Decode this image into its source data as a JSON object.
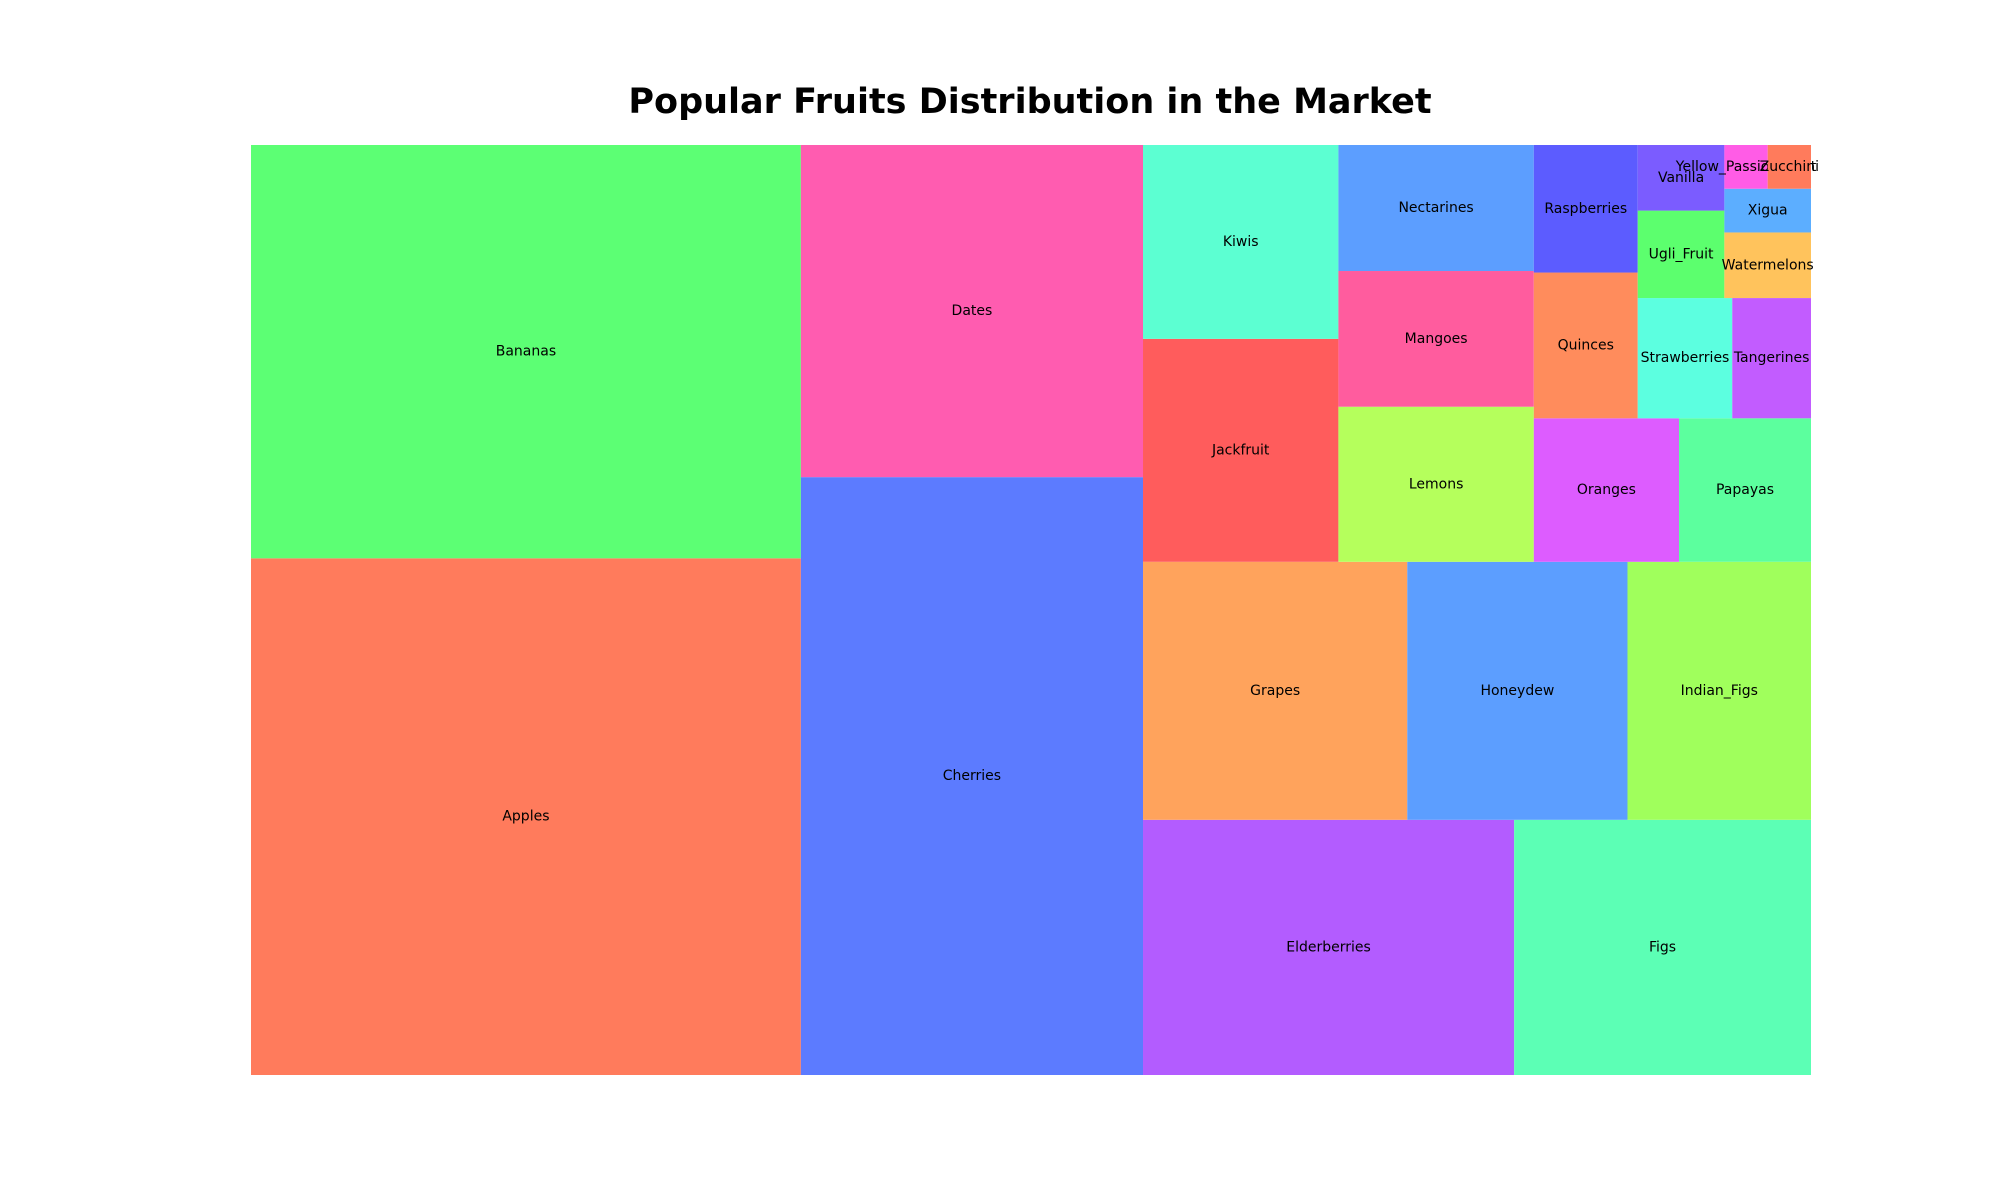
{
  "chart_data": {
    "type": "treemap",
    "title": "Popular Fruits Distribution in the Market",
    "items": [
      {
        "label": "Apples",
        "value": 150,
        "color": "#ff7b5c"
      },
      {
        "label": "Bananas",
        "value": 120,
        "color": "#5cff74"
      },
      {
        "label": "Cherries",
        "value": 108,
        "color": "#5c7bff"
      },
      {
        "label": "Dates",
        "value": 60,
        "color": "#ff5cb0"
      },
      {
        "label": "Elderberries",
        "value": 50,
        "color": "#b35cff"
      },
      {
        "label": "Figs",
        "value": 40,
        "color": "#5cffb5"
      },
      {
        "label": "Grapes",
        "value": 36,
        "color": "#ffa35c"
      },
      {
        "label": "Honeydew",
        "value": 30,
        "color": "#5c9eff"
      },
      {
        "label": "Indian_Figs",
        "value": 25,
        "color": "#a0ff5c"
      },
      {
        "label": "Jackfruit",
        "value": 23,
        "color": "#ff5c5c"
      },
      {
        "label": "Kiwis",
        "value": 20,
        "color": "#5cffd2"
      },
      {
        "label": "Lemons",
        "value": 16,
        "color": "#b5ff5c"
      },
      {
        "label": "Mangoes",
        "value": 14,
        "color": "#ff5c9e"
      },
      {
        "label": "Nectarines",
        "value": 13,
        "color": "#5c9eff"
      },
      {
        "label": "Oranges",
        "value": 11,
        "color": "#dd5cff"
      },
      {
        "label": "Papayas",
        "value": 10,
        "color": "#5cff9e"
      },
      {
        "label": "Quinces",
        "value": 8,
        "color": "#ff8c5c"
      },
      {
        "label": "Raspberries",
        "value": 7,
        "color": "#5c5cff"
      },
      {
        "label": "Strawberries",
        "value": 6,
        "color": "#5cffe0"
      },
      {
        "label": "Tangerines",
        "value": 5,
        "color": "#c25cff"
      },
      {
        "label": "Ugli_Fruit",
        "value": 4,
        "color": "#5cff6e"
      },
      {
        "label": "Vanilla",
        "value": 3,
        "color": "#7b5cff"
      },
      {
        "label": "Watermelons",
        "value": 3,
        "color": "#ffc35c"
      },
      {
        "label": "Xigua",
        "value": 2,
        "color": "#5caeff"
      },
      {
        "label": "Yellow_Passion_Fruit",
        "value": 1,
        "color": "#ff5ce6"
      },
      {
        "label": "Zucchini",
        "value": 1,
        "color": "#ff7b5c"
      }
    ]
  }
}
